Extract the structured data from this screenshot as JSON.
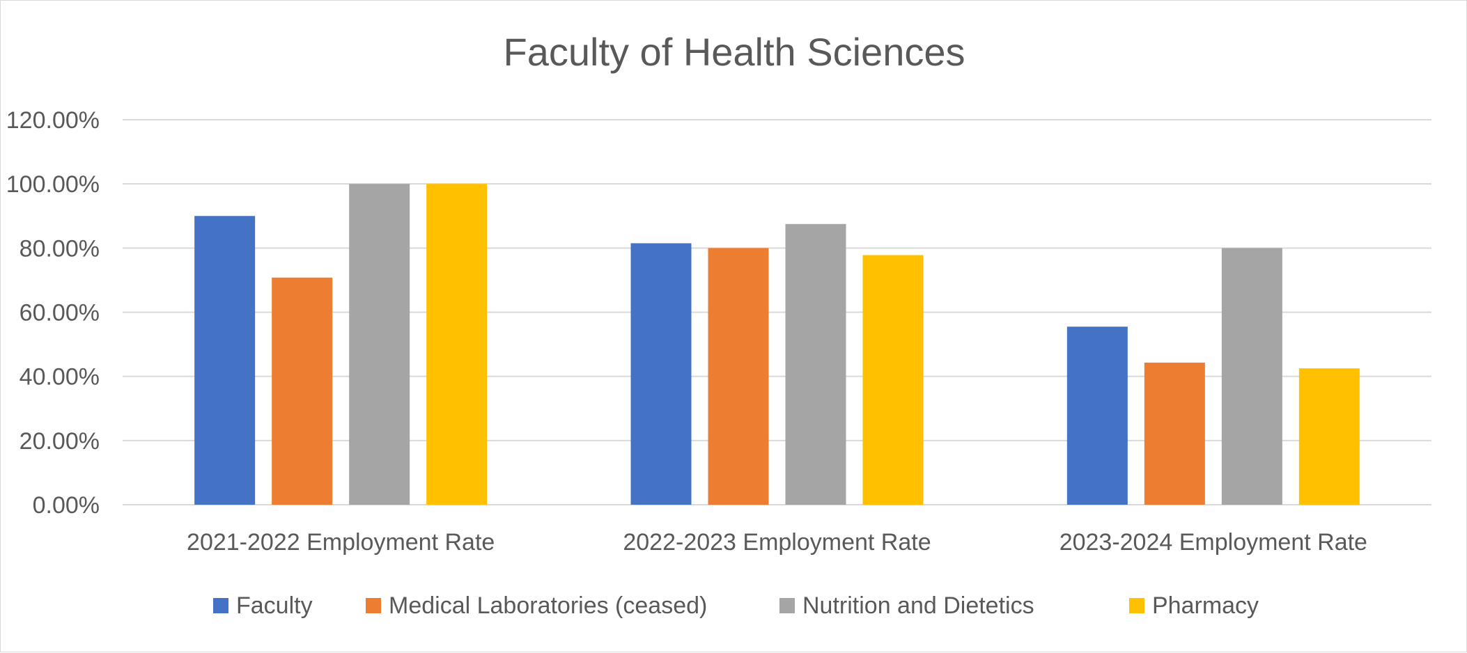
{
  "chart_data": {
    "type": "bar",
    "title": "Faculty of Health Sciences",
    "xlabel": "",
    "ylabel": "",
    "categories": [
      "2021-2022 Employment Rate",
      "2022-2023 Employment Rate",
      "2023-2024 Employment Rate"
    ],
    "series": [
      {
        "name": "Faculty",
        "color": "#4472C4",
        "values": [
          0.9,
          0.815,
          0.555
        ]
      },
      {
        "name": "Medical Laboratories (ceased)",
        "color": "#ED7D31",
        "values": [
          0.708,
          0.8,
          0.443
        ]
      },
      {
        "name": "Nutrition and Dietetics",
        "color": "#A5A5A5",
        "values": [
          1.0,
          0.875,
          0.8
        ]
      },
      {
        "name": "Pharmacy",
        "color": "#FFC000",
        "values": [
          1.0,
          0.778,
          0.425
        ]
      }
    ],
    "ylim": [
      0,
      1.2
    ],
    "yticks": [
      0,
      0.2,
      0.4,
      0.6,
      0.8,
      1.0,
      1.2
    ],
    "ytick_labels": [
      "0.00%",
      "20.00%",
      "40.00%",
      "60.00%",
      "80.00%",
      "100.00%",
      "120.00%"
    ],
    "grid": true,
    "legend_position": "bottom"
  }
}
